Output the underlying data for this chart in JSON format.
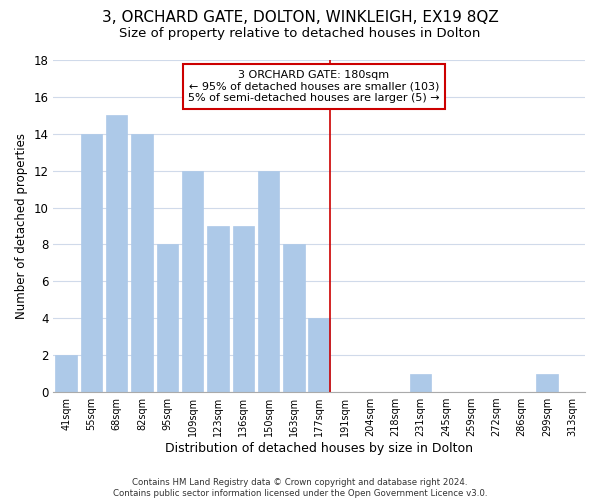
{
  "title": "3, ORCHARD GATE, DOLTON, WINKLEIGH, EX19 8QZ",
  "subtitle": "Size of property relative to detached houses in Dolton",
  "xlabel": "Distribution of detached houses by size in Dolton",
  "ylabel": "Number of detached properties",
  "bin_labels": [
    "41sqm",
    "55sqm",
    "68sqm",
    "82sqm",
    "95sqm",
    "109sqm",
    "123sqm",
    "136sqm",
    "150sqm",
    "163sqm",
    "177sqm",
    "191sqm",
    "204sqm",
    "218sqm",
    "231sqm",
    "245sqm",
    "259sqm",
    "272sqm",
    "286sqm",
    "299sqm",
    "313sqm"
  ],
  "bar_heights": [
    2,
    14,
    15,
    14,
    8,
    12,
    9,
    9,
    12,
    8,
    4,
    0,
    0,
    0,
    1,
    0,
    0,
    0,
    0,
    1,
    0
  ],
  "bar_color": "#adc9e8",
  "bar_edge_color": "#adc9e8",
  "grid_color": "#d0daea",
  "vline_x_index": 10,
  "vline_color": "#cc0000",
  "ylim": [
    0,
    18
  ],
  "yticks": [
    0,
    2,
    4,
    6,
    8,
    10,
    12,
    14,
    16,
    18
  ],
  "annotation_title": "3 ORCHARD GATE: 180sqm",
  "annotation_line1": "← 95% of detached houses are smaller (103)",
  "annotation_line2": "5% of semi-detached houses are larger (5) →",
  "footer_line1": "Contains HM Land Registry data © Crown copyright and database right 2024.",
  "footer_line2": "Contains public sector information licensed under the Open Government Licence v3.0.",
  "background_color": "#ffffff",
  "title_fontsize": 11,
  "subtitle_fontsize": 9.5,
  "annotation_box_edge_color": "#cc0000",
  "annotation_box_bg": "#ffffff"
}
